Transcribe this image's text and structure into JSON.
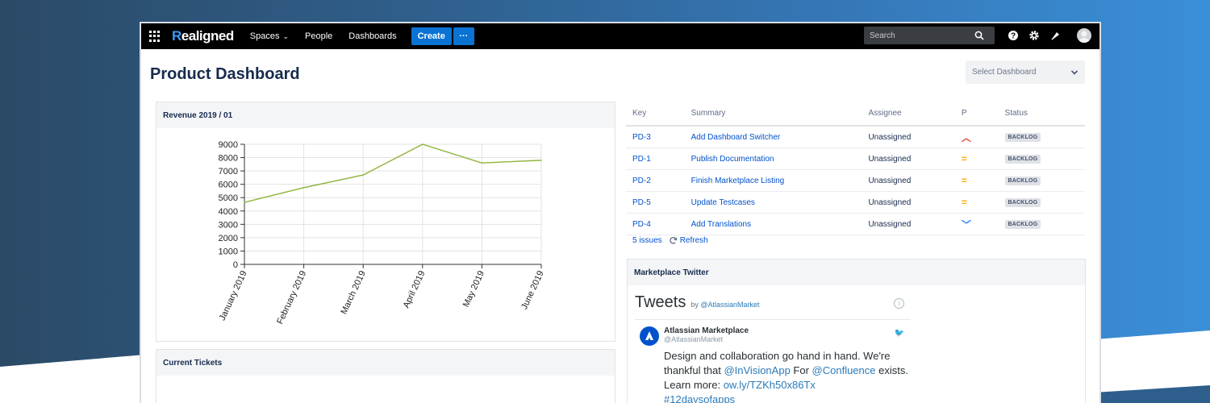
{
  "app": {
    "logo_first": "R",
    "logo_rest": "ealigned"
  },
  "nav": {
    "spaces": "Spaces",
    "people": "People",
    "dashboards": "Dashboards",
    "create": "Create",
    "more": "···"
  },
  "search": {
    "placeholder": "Search"
  },
  "page": {
    "title": "Product Dashboard",
    "select_dashboard": "Select Dashboard"
  },
  "revenue_panel": {
    "title": "Revenue 2019 / 01"
  },
  "tickets_panel": {
    "title": "Current Tickets"
  },
  "chart_data": {
    "type": "line",
    "title": "",
    "categories": [
      "January 2019",
      "February 2019",
      "March 2019",
      "April 2019",
      "May 2019",
      "June 2019"
    ],
    "series": [
      {
        "values": [
          4650,
          5750,
          6700,
          9000,
          7600,
          7800
        ],
        "color": "#8fb33a"
      }
    ],
    "ylim": [
      0,
      9000
    ],
    "yticks": [
      0,
      1000,
      2000,
      3000,
      4000,
      5000,
      6000,
      7000,
      8000,
      9000
    ],
    "grid": true,
    "xlabel": "",
    "ylabel": ""
  },
  "issues": {
    "headers": {
      "key": "Key",
      "summary": "Summary",
      "assignee": "Assignee",
      "priority": "P",
      "status": "Status"
    },
    "rows": [
      {
        "key": "PD-3",
        "summary": "Add Dashboard Switcher",
        "assignee": "Unassigned",
        "priority": "high",
        "status": "BACKLOG"
      },
      {
        "key": "PD-1",
        "summary": "Publish Documentation",
        "assignee": "Unassigned",
        "priority": "medium",
        "status": "BACKLOG"
      },
      {
        "key": "PD-2",
        "summary": "Finish Marketplace Listing",
        "assignee": "Unassigned",
        "priority": "medium",
        "status": "BACKLOG"
      },
      {
        "key": "PD-5",
        "summary": "Update Testcases",
        "assignee": "Unassigned",
        "priority": "medium",
        "status": "BACKLOG"
      },
      {
        "key": "PD-4",
        "summary": "Add Translations",
        "assignee": "Unassigned",
        "priority": "low",
        "status": "BACKLOG"
      }
    ],
    "count": "5 issues",
    "refresh": "Refresh"
  },
  "twitter": {
    "panel_title": "Marketplace Twitter",
    "title": "Tweets",
    "by": "by",
    "by_handle": "@AtlassianMarket",
    "name": "Atlassian Marketplace",
    "handle": "@AtlassianMarket",
    "text_1": "Design and collaboration go hand in hand. We're thankful that ",
    "mention_1": "@InVisionApp",
    "text_2": " For ",
    "mention_2": "@Confluence",
    "text_3": " exists. Learn more: ",
    "link": "ow.ly/TZKh50x86Tx",
    "hashtag": "#12daysofapps"
  },
  "colors": {
    "accent": "#0a73d4",
    "link": "#0052cc",
    "line": "#8fb33a"
  }
}
